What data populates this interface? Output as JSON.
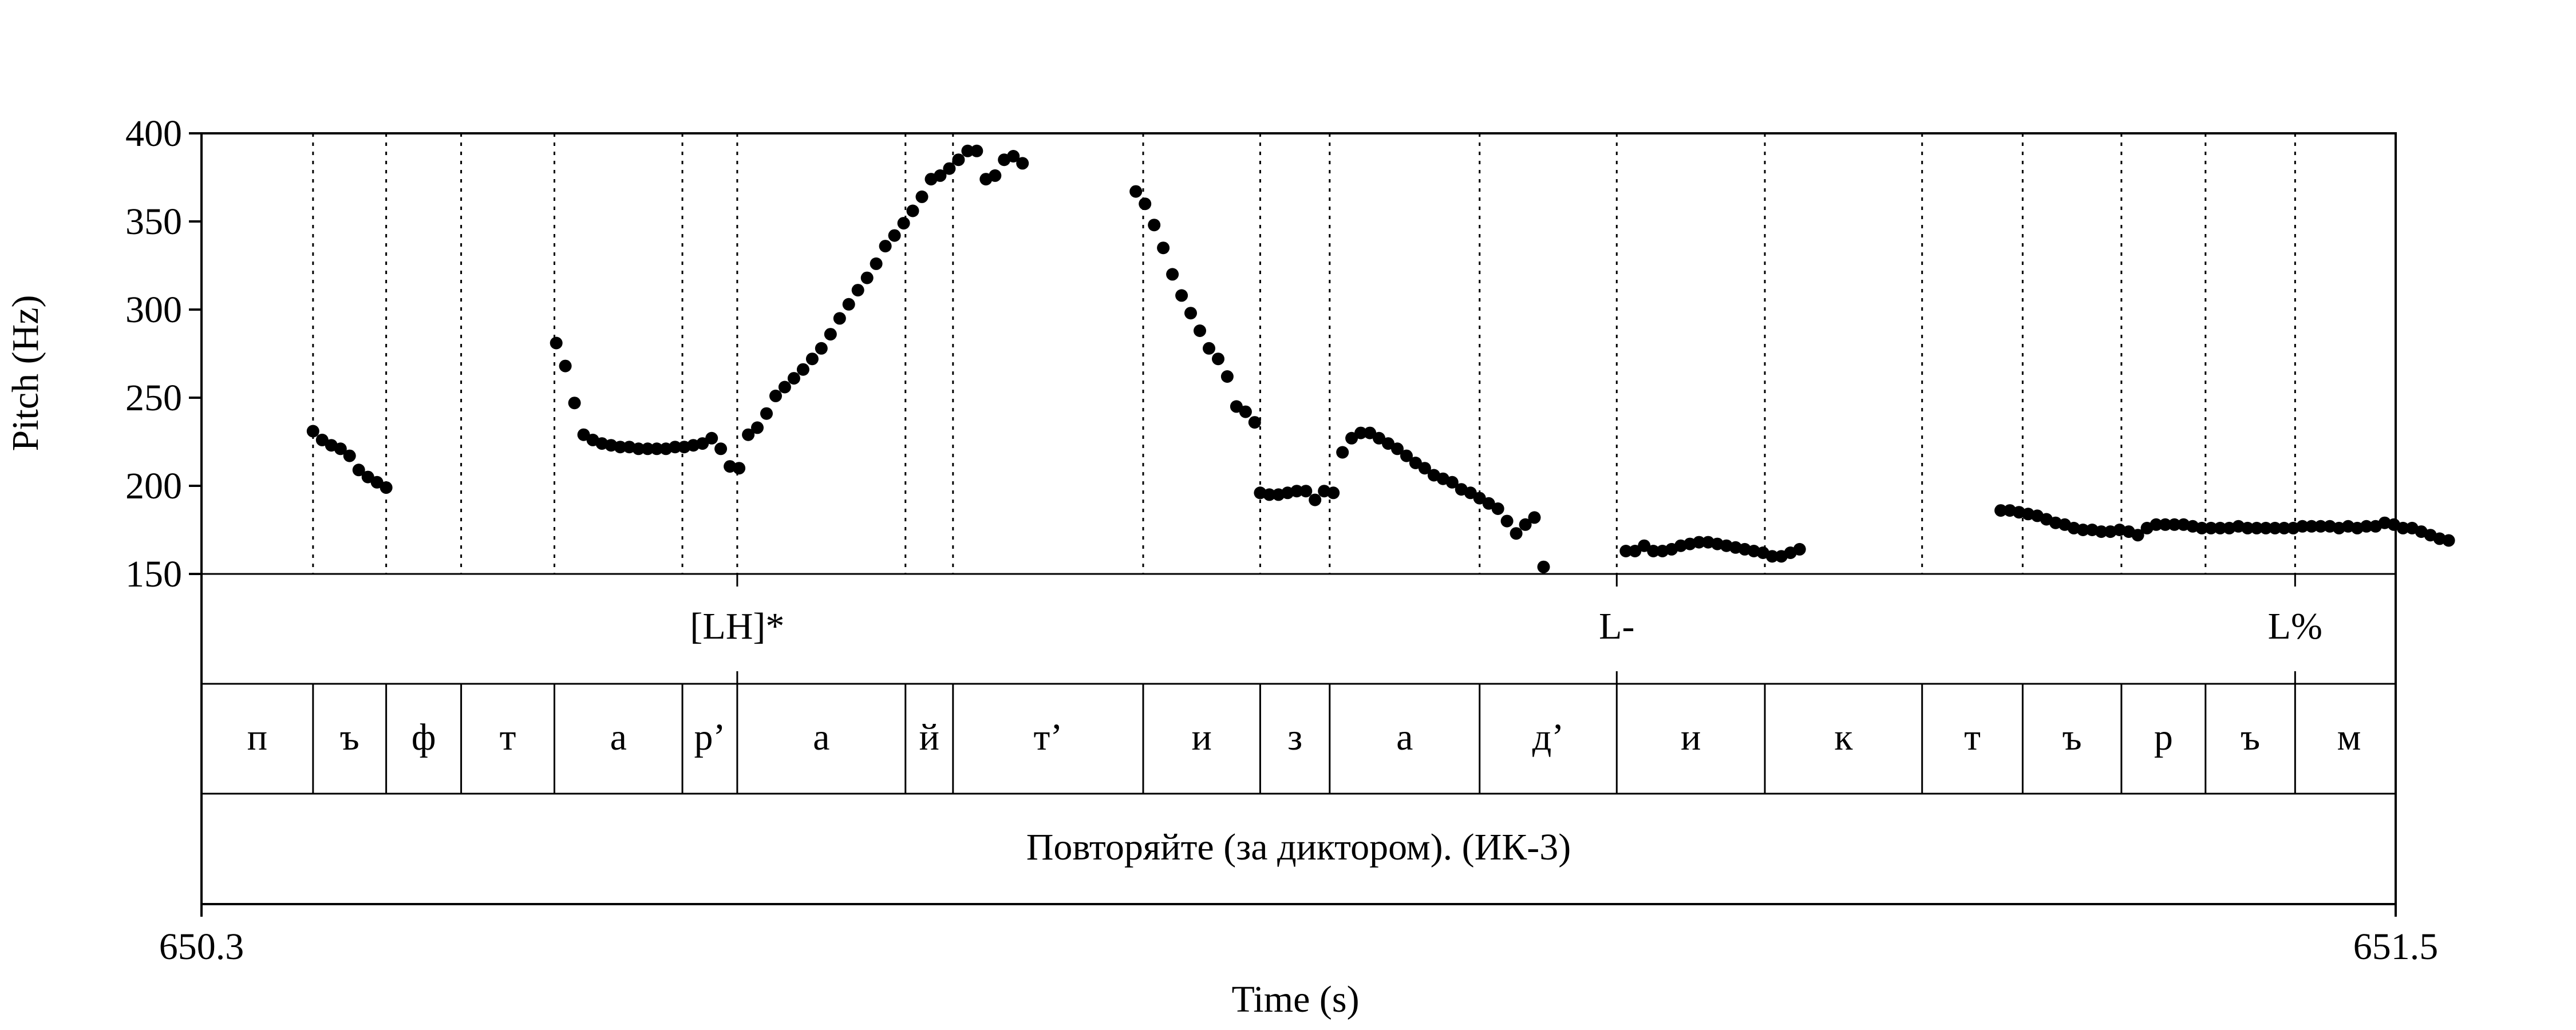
{
  "chart_data": {
    "type": "scatter",
    "xlabel": "Time (s)",
    "ylabel": "Pitch (Hz)",
    "xlim": [
      650.3,
      651.5
    ],
    "ylim": [
      150,
      400
    ],
    "x_ticks": [
      "650.3",
      "651.5"
    ],
    "y_ticks": [
      150,
      200,
      250,
      300,
      350,
      400
    ],
    "grid": "vertical dotted at segment boundaries",
    "marker_color": "#000000",
    "series": [
      {
        "values": [
          [
            650.361,
            231
          ],
          [
            650.366,
            226
          ],
          [
            650.371,
            223
          ],
          [
            650.376,
            221
          ],
          [
            650.381,
            217
          ],
          [
            650.386,
            209
          ],
          [
            650.391,
            205
          ],
          [
            650.396,
            202
          ],
          [
            650.401,
            199
          ],
          [
            650.494,
            281
          ],
          [
            650.499,
            268
          ],
          [
            650.504,
            247
          ],
          [
            650.509,
            229
          ],
          [
            650.514,
            226
          ],
          [
            650.519,
            224
          ],
          [
            650.524,
            223
          ],
          [
            650.529,
            222
          ],
          [
            650.534,
            222
          ],
          [
            650.539,
            221
          ],
          [
            650.544,
            221
          ],
          [
            650.549,
            221
          ],
          [
            650.554,
            221
          ],
          [
            650.559,
            222
          ],
          [
            650.564,
            222
          ],
          [
            650.569,
            223
          ],
          [
            650.574,
            224
          ],
          [
            650.579,
            227
          ],
          [
            650.584,
            221
          ],
          [
            650.589,
            211
          ],
          [
            650.594,
            210
          ],
          [
            650.599,
            229
          ],
          [
            650.604,
            233
          ],
          [
            650.609,
            241
          ],
          [
            650.614,
            251
          ],
          [
            650.619,
            256
          ],
          [
            650.624,
            261
          ],
          [
            650.629,
            266
          ],
          [
            650.634,
            272
          ],
          [
            650.639,
            278
          ],
          [
            650.644,
            286
          ],
          [
            650.649,
            295
          ],
          [
            650.654,
            303
          ],
          [
            650.659,
            311
          ],
          [
            650.664,
            318
          ],
          [
            650.669,
            326
          ],
          [
            650.674,
            336
          ],
          [
            650.679,
            342
          ],
          [
            650.684,
            349
          ],
          [
            650.689,
            356
          ],
          [
            650.694,
            364
          ],
          [
            650.699,
            374
          ],
          [
            650.704,
            376
          ],
          [
            650.709,
            380
          ],
          [
            650.714,
            385
          ],
          [
            650.719,
            390
          ],
          [
            650.724,
            390
          ],
          [
            650.729,
            374
          ],
          [
            650.734,
            376
          ],
          [
            650.739,
            385
          ],
          [
            650.744,
            387
          ],
          [
            650.749,
            383
          ],
          [
            650.811,
            367
          ],
          [
            650.816,
            360
          ],
          [
            650.821,
            348
          ],
          [
            650.826,
            335
          ],
          [
            650.831,
            320
          ],
          [
            650.836,
            308
          ],
          [
            650.841,
            298
          ],
          [
            650.846,
            288
          ],
          [
            650.851,
            278
          ],
          [
            650.856,
            272
          ],
          [
            650.861,
            262
          ],
          [
            650.866,
            245
          ],
          [
            650.871,
            242
          ],
          [
            650.876,
            236
          ],
          [
            650.879,
            196
          ],
          [
            650.884,
            195
          ],
          [
            650.889,
            195
          ],
          [
            650.894,
            196
          ],
          [
            650.899,
            197
          ],
          [
            650.904,
            197
          ],
          [
            650.909,
            192
          ],
          [
            650.914,
            197
          ],
          [
            650.919,
            196
          ],
          [
            650.924,
            219
          ],
          [
            650.929,
            227
          ],
          [
            650.934,
            230
          ],
          [
            650.939,
            230
          ],
          [
            650.944,
            227
          ],
          [
            650.949,
            224
          ],
          [
            650.954,
            221
          ],
          [
            650.959,
            217
          ],
          [
            650.964,
            213
          ],
          [
            650.969,
            210
          ],
          [
            650.974,
            206
          ],
          [
            650.979,
            204
          ],
          [
            650.984,
            202
          ],
          [
            650.989,
            198
          ],
          [
            650.994,
            196
          ],
          [
            650.999,
            193
          ],
          [
            651.004,
            190
          ],
          [
            651.009,
            187
          ],
          [
            651.014,
            180
          ],
          [
            651.019,
            173
          ],
          [
            651.024,
            178
          ],
          [
            651.029,
            182
          ],
          [
            651.034,
            154
          ],
          [
            651.079,
            163
          ],
          [
            651.084,
            163
          ],
          [
            651.089,
            166
          ],
          [
            651.094,
            163
          ],
          [
            651.099,
            163
          ],
          [
            651.104,
            164
          ],
          [
            651.109,
            166
          ],
          [
            651.114,
            167
          ],
          [
            651.119,
            168
          ],
          [
            651.124,
            168
          ],
          [
            651.129,
            167
          ],
          [
            651.134,
            166
          ],
          [
            651.139,
            165
          ],
          [
            651.144,
            164
          ],
          [
            651.149,
            163
          ],
          [
            651.154,
            162
          ],
          [
            651.159,
            160
          ],
          [
            651.164,
            160
          ],
          [
            651.169,
            162
          ],
          [
            651.174,
            164
          ],
          [
            651.284,
            186
          ],
          [
            651.289,
            186
          ],
          [
            651.294,
            185
          ],
          [
            651.299,
            184
          ],
          [
            651.304,
            183
          ],
          [
            651.309,
            181
          ],
          [
            651.314,
            179
          ],
          [
            651.319,
            178
          ],
          [
            651.324,
            176
          ],
          [
            651.329,
            175
          ],
          [
            651.334,
            175
          ],
          [
            651.339,
            174
          ],
          [
            651.344,
            174
          ],
          [
            651.349,
            175
          ],
          [
            651.354,
            174
          ],
          [
            651.359,
            172
          ],
          [
            651.364,
            176
          ],
          [
            651.369,
            178
          ],
          [
            651.374,
            178
          ],
          [
            651.379,
            178
          ],
          [
            651.384,
            178
          ],
          [
            651.389,
            177
          ],
          [
            651.394,
            176
          ],
          [
            651.399,
            176
          ],
          [
            651.404,
            176
          ],
          [
            651.409,
            176
          ],
          [
            651.414,
            177
          ],
          [
            651.419,
            176
          ],
          [
            651.424,
            176
          ],
          [
            651.429,
            176
          ],
          [
            651.434,
            176
          ],
          [
            651.439,
            176
          ],
          [
            651.444,
            176
          ],
          [
            651.449,
            177
          ],
          [
            651.454,
            177
          ],
          [
            651.459,
            177
          ],
          [
            651.464,
            177
          ],
          [
            651.469,
            176
          ],
          [
            651.474,
            177
          ],
          [
            651.479,
            176
          ],
          [
            651.484,
            177
          ],
          [
            651.489,
            177
          ],
          [
            651.494,
            179
          ],
          [
            651.499,
            178
          ],
          [
            651.504,
            176
          ],
          [
            651.509,
            176
          ],
          [
            651.514,
            174
          ],
          [
            651.519,
            172
          ],
          [
            651.524,
            170
          ],
          [
            651.529,
            169
          ]
        ]
      }
    ],
    "segment_boundaries": [
      650.3,
      650.361,
      650.401,
      650.442,
      650.493,
      650.563,
      650.593,
      650.685,
      650.711,
      650.815,
      650.879,
      650.917,
      650.999,
      651.074,
      651.155,
      651.241,
      651.296,
      651.35,
      651.396,
      651.445,
      651.504
    ],
    "tones": [
      {
        "time": 650.593,
        "label": "[LH]*"
      },
      {
        "time": 651.074,
        "label": "L-"
      },
      {
        "time": 651.445,
        "label": "L%"
      }
    ],
    "segments": [
      "п",
      "ъ",
      "ф",
      "т",
      "а",
      "р’",
      "а",
      "й",
      "т’",
      "и",
      "з",
      "а",
      "д’",
      "и",
      "к",
      "т",
      "ъ",
      "р",
      "ъ",
      "м"
    ],
    "sentence": "Повторяйте (за диктором). (ИК-3)"
  }
}
